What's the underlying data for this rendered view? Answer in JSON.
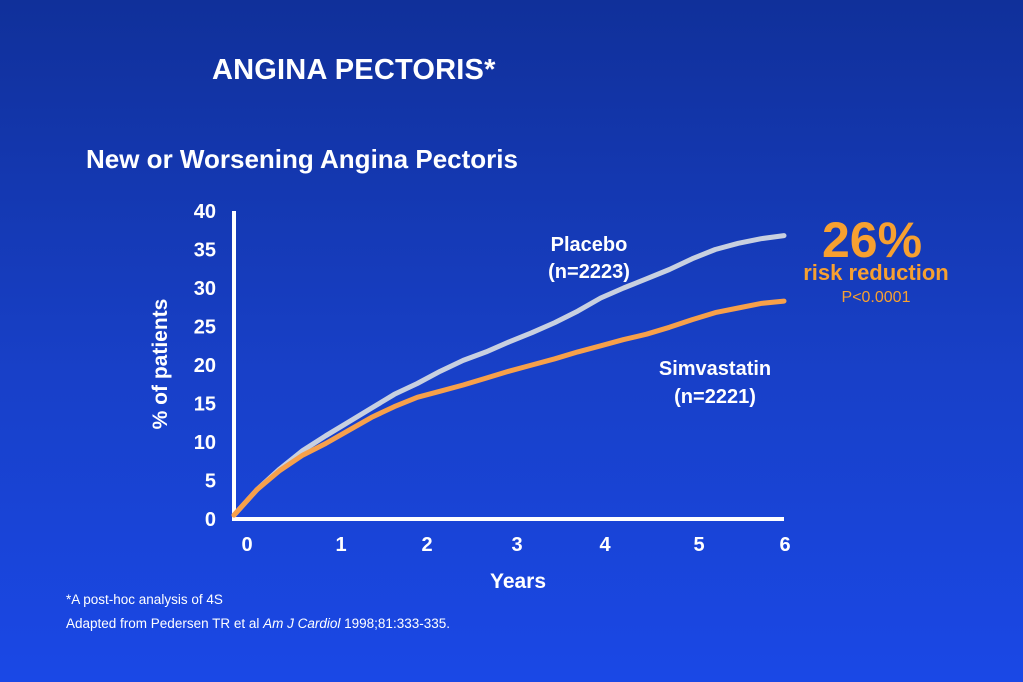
{
  "slide": {
    "title": "ANGINA PECTORIS*"
  },
  "footnotes": {
    "note": "*A post-hoc analysis of 4S",
    "citation_prefix": "Adapted from Pedersen TR et al ",
    "citation_journal": "Am J Cardiol",
    "citation_suffix": " 1998;81:333-335."
  },
  "annotation": {
    "percent": "26%",
    "label": "risk reduction",
    "pvalue": "P<0.0001",
    "color": "#f7a030"
  },
  "chart_data": {
    "type": "line",
    "title": "New or Worsening Angina Pectoris",
    "xlabel": "Years",
    "ylabel": "% of patients",
    "xlim": [
      0,
      6
    ],
    "ylim": [
      0,
      40
    ],
    "xticks": [
      0,
      1,
      2,
      3,
      4,
      5,
      6
    ],
    "yticks": [
      0,
      5,
      10,
      15,
      20,
      25,
      30,
      35,
      40
    ],
    "grid": false,
    "series": [
      {
        "name": "Placebo",
        "label_line1": "Placebo",
        "label_line2": "(n=2223)",
        "color": "#c8d0e0",
        "x": [
          0,
          0.25,
          0.5,
          0.75,
          1,
          1.25,
          1.5,
          1.75,
          2,
          2.25,
          2.5,
          2.75,
          3,
          3.25,
          3.5,
          3.75,
          4,
          4.25,
          4.5,
          4.75,
          5,
          5.25,
          5.5,
          5.75,
          6
        ],
        "y": [
          0.5,
          3.8,
          6.5,
          8.9,
          10.8,
          12.6,
          14.4,
          16.2,
          17.6,
          19.2,
          20.6,
          21.7,
          23.0,
          24.2,
          25.5,
          27.0,
          28.7,
          30.0,
          31.2,
          32.4,
          33.8,
          35.0,
          35.8,
          36.4,
          36.8
        ]
      },
      {
        "name": "Simvastatin",
        "label_line1": "Simvastatin",
        "label_line2": "(n=2221)",
        "color": "#f7a04a",
        "x": [
          0,
          0.25,
          0.5,
          0.75,
          1,
          1.25,
          1.5,
          1.75,
          2,
          2.25,
          2.5,
          2.75,
          3,
          3.25,
          3.5,
          3.75,
          4,
          4.25,
          4.5,
          4.75,
          5,
          5.25,
          5.5,
          5.75,
          6
        ],
        "y": [
          0.5,
          3.8,
          6.3,
          8.3,
          9.8,
          11.5,
          13.2,
          14.6,
          15.8,
          16.6,
          17.4,
          18.3,
          19.2,
          20.0,
          20.8,
          21.7,
          22.5,
          23.3,
          24.0,
          24.9,
          25.9,
          26.8,
          27.4,
          28.0,
          28.3
        ]
      }
    ]
  }
}
